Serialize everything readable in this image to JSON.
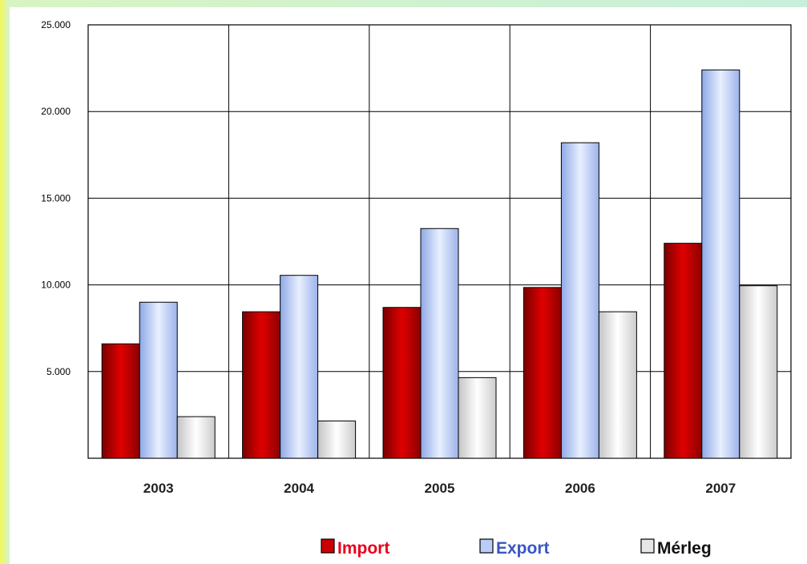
{
  "chart_data": {
    "type": "bar",
    "categories": [
      "2003",
      "2004",
      "2005",
      "2006",
      "2007"
    ],
    "series": [
      {
        "name": "Import",
        "values": [
          6600,
          8450,
          8700,
          9850,
          12400
        ],
        "color": "#cc0000",
        "text_color": "#e8001c"
      },
      {
        "name": "Export",
        "values": [
          9000,
          10550,
          13250,
          18200,
          22400
        ],
        "color": "#b9cdf7",
        "text_color": "#3a56c4"
      },
      {
        "name": "Mérleg",
        "values": [
          2400,
          2150,
          4650,
          8450,
          9950
        ],
        "color": "#e6e6e6",
        "text_color": "#111111"
      }
    ],
    "yticks": [
      "5.000",
      "10.000",
      "15.000",
      "20.000",
      "25.000"
    ],
    "ylim": [
      0,
      25000
    ],
    "grid": true,
    "legend": "bottom"
  }
}
